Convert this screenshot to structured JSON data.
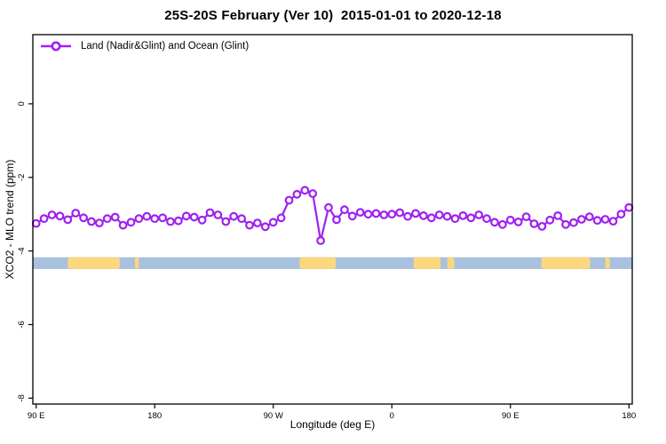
{
  "chart_data": {
    "type": "line",
    "title": "25S-20S February (Ver 10)  2015-01-01 to 2020-12-18",
    "xlabel": "Longitude (deg E)",
    "ylabel": "XCO2 - MLO trend (ppm)",
    "grid": false,
    "legend": {
      "position": "top-left",
      "label": "Land (Nadir&Glint) and Ocean (Glint)"
    },
    "x_axis": {
      "range": [
        87.5,
        542.5
      ],
      "ticks": [
        {
          "value": 90,
          "label": "90 E"
        },
        {
          "value": 180,
          "label": "180"
        },
        {
          "value": 270,
          "label": "90 W"
        },
        {
          "value": 360,
          "label": "0"
        },
        {
          "value": 450,
          "label": "90 E"
        },
        {
          "value": 540,
          "label": "180"
        }
      ]
    },
    "y_axis": {
      "range": [
        1.88,
        -8.16
      ],
      "ticks": [
        {
          "value": 0,
          "label": "0"
        },
        {
          "value": -2,
          "label": "-2"
        },
        {
          "value": -4,
          "label": "-4"
        },
        {
          "value": -6,
          "label": "-6"
        },
        {
          "value": -8,
          "label": "-8"
        }
      ]
    },
    "series": [
      {
        "name": "Land (Nadir&Glint) and Ocean (Glint)",
        "color": "#A020F0",
        "marker": "open-circle",
        "x": [
          90,
          96,
          102,
          108,
          114,
          120,
          126,
          132,
          138,
          144,
          150,
          156,
          162,
          168,
          174,
          180,
          186,
          192,
          198,
          204,
          210,
          216,
          222,
          228,
          234,
          240,
          246,
          252,
          258,
          264,
          270,
          276,
          282,
          288,
          294,
          300,
          306,
          312,
          318,
          324,
          330,
          336,
          342,
          348,
          354,
          360,
          366,
          372,
          378,
          384,
          390,
          396,
          402,
          408,
          414,
          420,
          426,
          432,
          438,
          444,
          450,
          456,
          462,
          468,
          474,
          480,
          486,
          492,
          498,
          504,
          510,
          516,
          522,
          528,
          534,
          540
        ],
        "y": [
          -3.25,
          -3.12,
          -3.02,
          -3.05,
          -3.15,
          -2.97,
          -3.1,
          -3.2,
          -3.24,
          -3.12,
          -3.08,
          -3.3,
          -3.22,
          -3.12,
          -3.06,
          -3.12,
          -3.1,
          -3.2,
          -3.18,
          -3.05,
          -3.08,
          -3.16,
          -2.96,
          -3.02,
          -3.2,
          -3.06,
          -3.12,
          -3.3,
          -3.24,
          -3.34,
          -3.22,
          -3.1,
          -2.62,
          -2.46,
          -2.35,
          -2.44,
          -3.72,
          -2.82,
          -3.15,
          -2.88,
          -3.05,
          -2.95,
          -3.0,
          -2.98,
          -3.02,
          -3.0,
          -2.96,
          -3.06,
          -2.98,
          -3.04,
          -3.1,
          -3.02,
          -3.06,
          -3.12,
          -3.04,
          -3.1,
          -3.02,
          -3.12,
          -3.22,
          -3.28,
          -3.16,
          -3.21,
          -3.07,
          -3.26,
          -3.33,
          -3.16,
          -3.04,
          -3.28,
          -3.23,
          -3.14,
          -3.07,
          -3.17,
          -3.14,
          -3.19,
          -3.0,
          -2.82
        ]
      }
    ],
    "map_strip": {
      "description": "land-ocean strip for 25S-20S latitude band",
      "y_top": -4.17,
      "y_bottom": -4.49,
      "ocean_color": "#A9C1DE",
      "land_color": "#FBD77D",
      "land_segments_deg": [
        [
          114,
          153.5
        ],
        [
          165,
          168
        ],
        [
          290,
          317.5
        ],
        [
          376.5,
          397
        ],
        [
          402,
          407.5
        ],
        [
          473.5,
          510.5
        ],
        [
          522,
          525.5
        ]
      ]
    },
    "axis_color": "#000000",
    "background_color": "#ffffff"
  }
}
